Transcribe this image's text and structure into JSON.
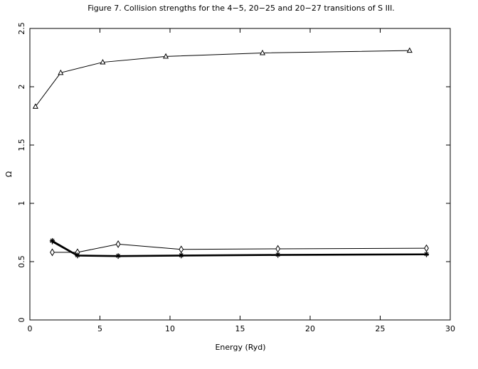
{
  "chart_data": {
    "type": "line",
    "title": "Figure 7. Collision strengths for the 4−5, 20−25 and 20−27 transitions of S III.",
    "xlabel": "Energy (Ryd)",
    "ylabel": "Ω",
    "xlim": [
      0,
      30
    ],
    "ylim": [
      0,
      2.5
    ],
    "xticks": [
      0,
      5,
      10,
      15,
      20,
      25,
      30
    ],
    "yticks": [
      0,
      0.5,
      1,
      1.5,
      2,
      2.5
    ],
    "xtick_labels": [
      "0",
      "5",
      "10",
      "15",
      "20",
      "25",
      "30"
    ],
    "ytick_labels": [
      "0",
      "0.5",
      "1",
      "1.5",
      "2",
      "2.5"
    ],
    "grid": false,
    "series": [
      {
        "marker": "triangle",
        "x": [
          0.4,
          2.2,
          5.2,
          9.7,
          16.6,
          27.1
        ],
        "y": [
          1.83,
          2.12,
          2.21,
          2.26,
          2.29,
          2.31
        ]
      },
      {
        "marker": "diamond",
        "x": [
          1.6,
          3.4,
          6.3,
          10.8,
          17.7,
          28.3
        ],
        "y": [
          0.58,
          0.58,
          0.65,
          0.605,
          0.61,
          0.615
        ]
      },
      {
        "marker": "star",
        "x": [
          1.6,
          3.4,
          6.3,
          10.8,
          17.7,
          28.3
        ],
        "y": [
          0.68,
          0.555,
          0.55,
          0.555,
          0.56,
          0.565
        ]
      },
      {
        "marker": "plus",
        "x": [
          1.6,
          3.4,
          6.3,
          10.8,
          17.7,
          28.3
        ],
        "y": [
          0.67,
          0.55,
          0.545,
          0.55,
          0.555,
          0.56
        ]
      }
    ]
  }
}
